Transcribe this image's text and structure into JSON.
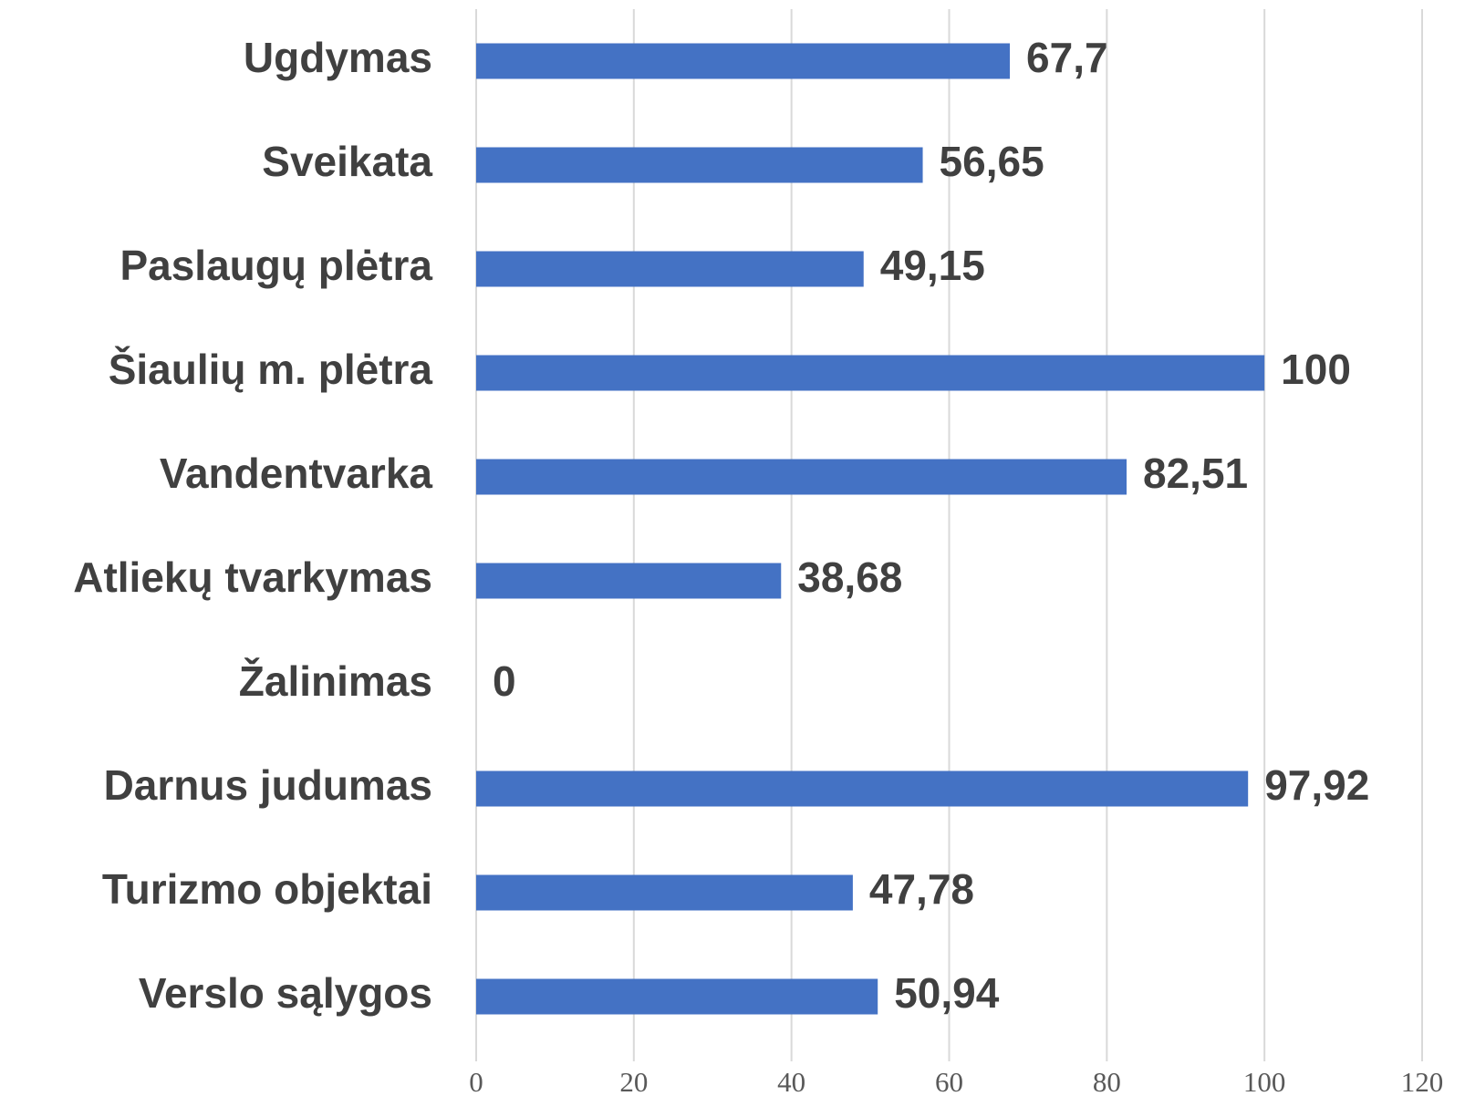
{
  "chart_data": {
    "type": "barh",
    "categories": [
      "Ugdymas",
      "Sveikata",
      "Paslaugų plėtra",
      "Šiaulių m. plėtra",
      "Vandentvarka",
      "Atliekų tvarkymas",
      "Žalinimas",
      "Darnus judumas",
      "Turizmo objektai",
      "Verslo sąlygos"
    ],
    "values": [
      67.7,
      56.65,
      49.15,
      100,
      82.51,
      38.68,
      0,
      97.92,
      47.78,
      50.94
    ],
    "value_labels": [
      "67,7",
      "56,65",
      "49,15",
      "100",
      "82,51",
      "38,68",
      "0",
      "97,92",
      "47,78",
      "50,94"
    ],
    "color": "#4472c4",
    "xlim": [
      0,
      120
    ],
    "xticks": [
      0,
      20,
      40,
      60,
      80,
      100,
      120
    ],
    "grid": true
  }
}
